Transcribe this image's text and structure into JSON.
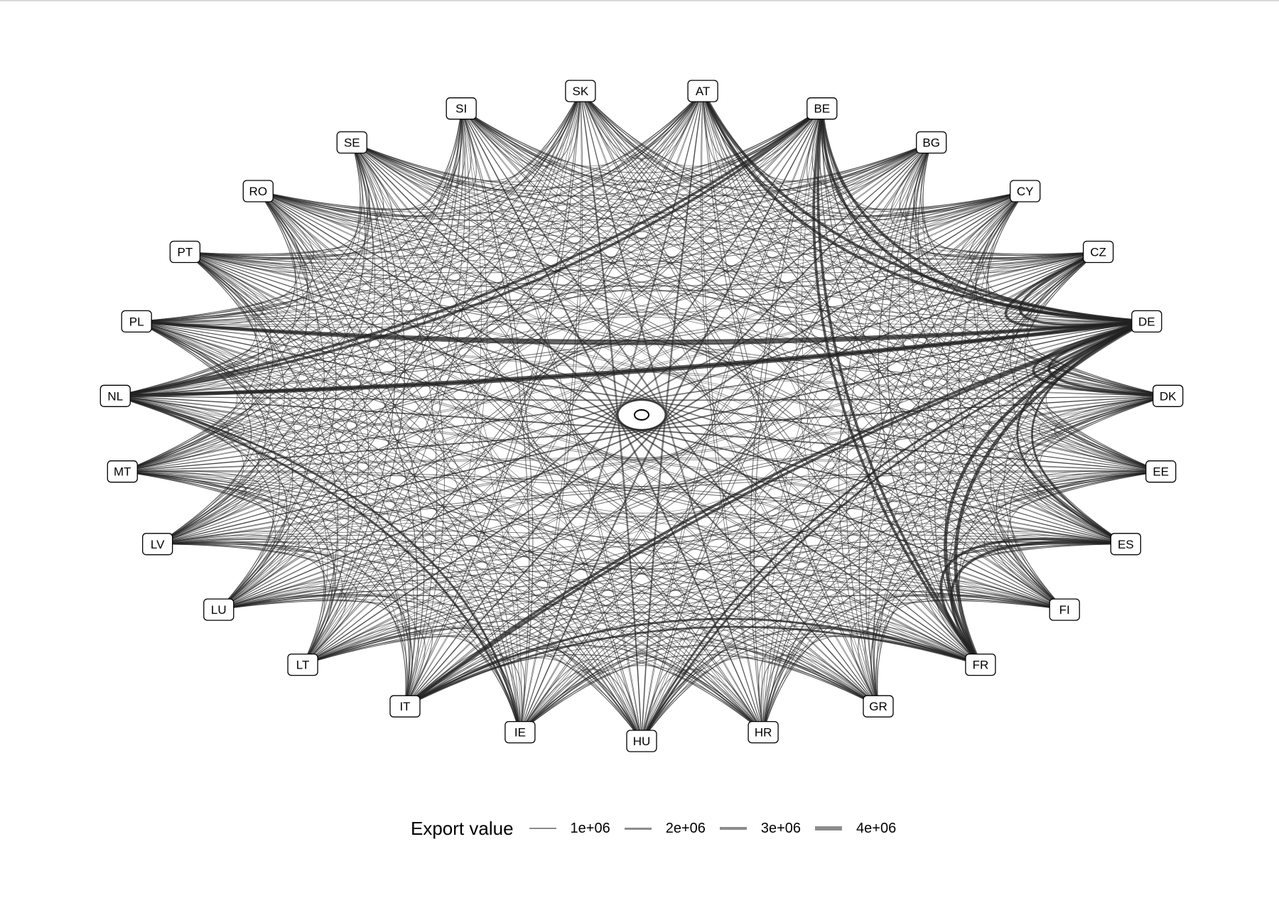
{
  "diagram": {
    "type": "chord-network",
    "nodes": [
      "AT",
      "BE",
      "BG",
      "CY",
      "CZ",
      "DE",
      "DK",
      "EE",
      "ES",
      "FI",
      "FR",
      "GR",
      "HR",
      "HU",
      "IE",
      "IT",
      "LT",
      "LU",
      "LV",
      "MT",
      "NL",
      "PL",
      "PT",
      "RO",
      "SE",
      "SI",
      "SK"
    ],
    "edge_color": "#222222",
    "heavy_links": [
      {
        "from": "DE",
        "to": "NL",
        "value": 4000000
      },
      {
        "from": "DE",
        "to": "FR",
        "value": 4000000
      },
      {
        "from": "DE",
        "to": "BE",
        "value": 3000000
      },
      {
        "from": "DE",
        "to": "IT",
        "value": 3000000
      },
      {
        "from": "DE",
        "to": "PL",
        "value": 3000000
      },
      {
        "from": "DE",
        "to": "CZ",
        "value": 3000000
      },
      {
        "from": "DE",
        "to": "AT",
        "value": 3000000
      },
      {
        "from": "DE",
        "to": "DK",
        "value": 3000000
      },
      {
        "from": "FR",
        "to": "BE",
        "value": 3000000
      },
      {
        "from": "FR",
        "to": "ES",
        "value": 3000000
      },
      {
        "from": "NL",
        "to": "BE",
        "value": 3000000
      },
      {
        "from": "FR",
        "to": "IT",
        "value": 2000000
      },
      {
        "from": "ES",
        "to": "DE",
        "value": 2000000
      },
      {
        "from": "IE",
        "to": "NL",
        "value": 2000000
      },
      {
        "from": "HU",
        "to": "DE",
        "value": 2000000
      }
    ]
  },
  "legend": {
    "title": "Export value",
    "items": [
      {
        "label": "1e+06",
        "value": 1000000
      },
      {
        "label": "2e+06",
        "value": 2000000
      },
      {
        "label": "3e+06",
        "value": 3000000
      },
      {
        "label": "4e+06",
        "value": 4000000
      }
    ]
  }
}
